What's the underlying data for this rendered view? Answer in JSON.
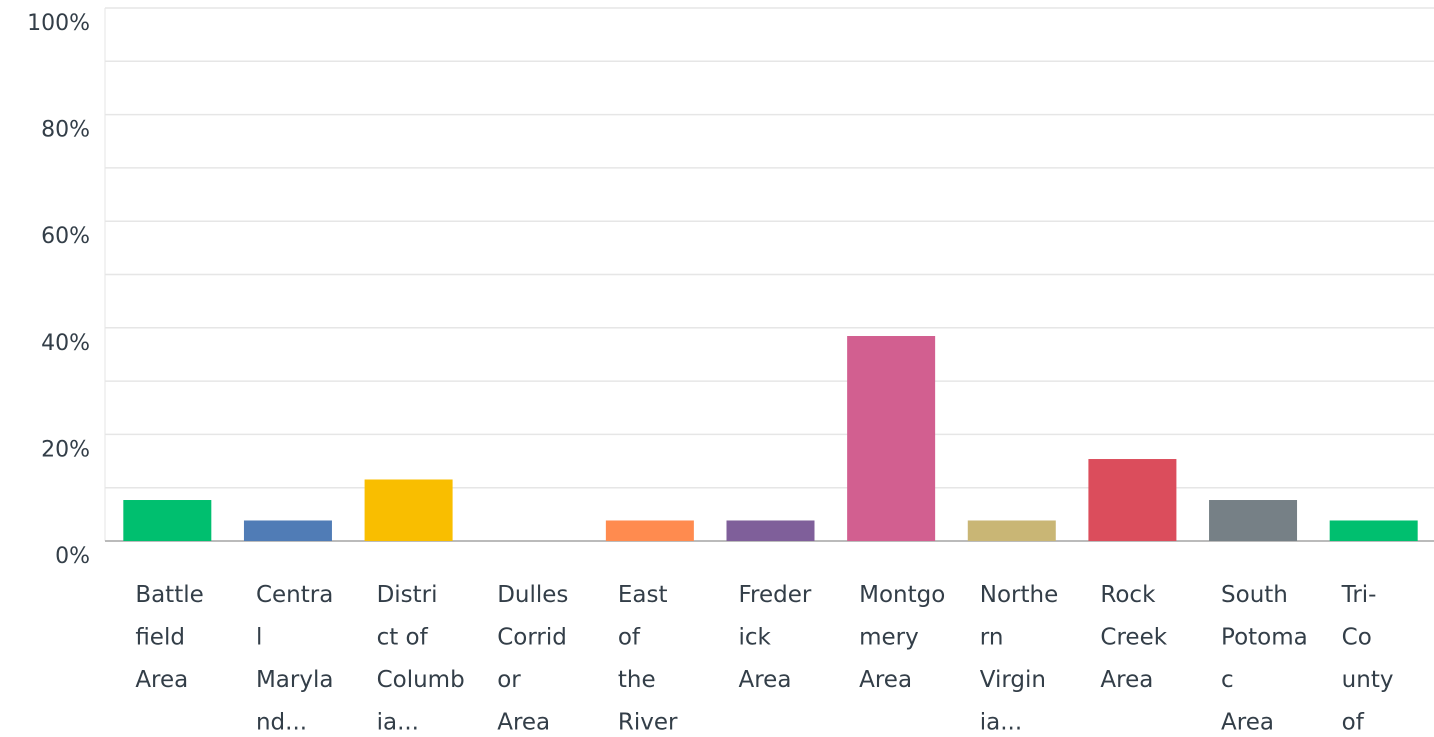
{
  "chart_data": {
    "type": "bar",
    "categories": [
      [
        "Battle",
        "field",
        "Area"
      ],
      [
        "Centra",
        "l",
        "Maryla",
        "nd..."
      ],
      [
        "Distri",
        "ct of",
        "Columb",
        "ia..."
      ],
      [
        "Dulles",
        "Corrid",
        "or",
        "Area"
      ],
      [
        "East",
        "of",
        "the",
        "River"
      ],
      [
        "Freder",
        "ick",
        "Area"
      ],
      [
        "Montgo",
        "mery",
        "Area"
      ],
      [
        "Northe",
        "rn",
        "Virgin",
        "ia..."
      ],
      [
        "Rock",
        "Creek",
        "Area"
      ],
      [
        "South",
        "Potoma",
        "c",
        "Area"
      ],
      [
        "Tri-",
        "Co",
        "unty",
        "of"
      ]
    ],
    "values": [
      7.69,
      3.85,
      11.54,
      0,
      3.85,
      3.85,
      38.46,
      3.85,
      15.38,
      7.69,
      3.85
    ],
    "colors": [
      "#00bf6f",
      "#507cb6",
      "#f9be00",
      "#6bc8cd",
      "#ff8b4f",
      "#7f5f9a",
      "#d25f90",
      "#c9b675",
      "#db4d5c",
      "#768086",
      "#00bf6f"
    ],
    "ylim": [
      0,
      100
    ],
    "yticks": [
      {
        "value": 0,
        "label": "0%"
      },
      {
        "value": 20,
        "label": "20%"
      },
      {
        "value": 40,
        "label": "40%"
      },
      {
        "value": 60,
        "label": "60%"
      },
      {
        "value": 80,
        "label": "80%"
      },
      {
        "value": 100,
        "label": "100%"
      }
    ],
    "grid": true
  }
}
